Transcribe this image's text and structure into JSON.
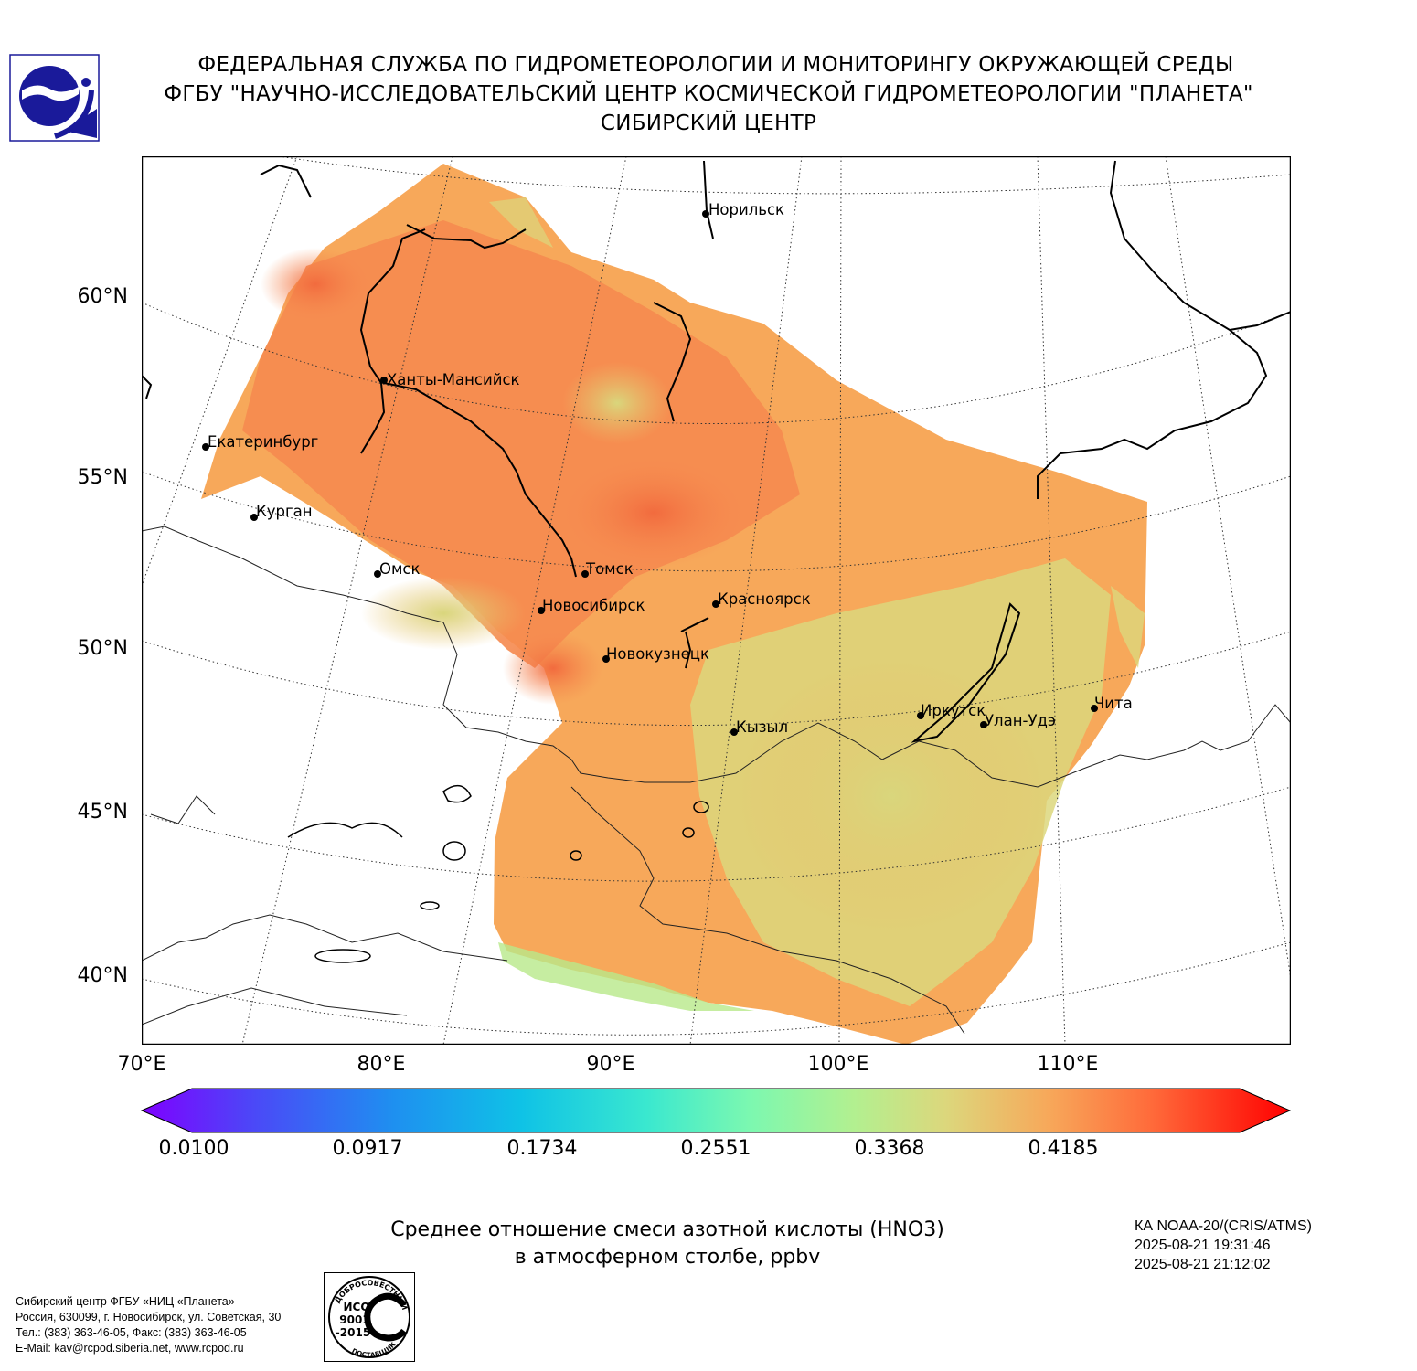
{
  "header": {
    "line1": "ФЕДЕРАЛЬНАЯ СЛУЖБА ПО ГИДРОМЕТЕОРОЛОГИИ И МОНИТОРИНГУ ОКРУЖАЮЩЕЙ СРЕДЫ",
    "line2": "ФГБУ \"НАУЧНО-ИССЛЕДОВАТЕЛЬСКИЙ ЦЕНТР КОСМИЧЕСКОЙ ГИДРОМЕТЕОРОЛОГИИ \"ПЛАНЕТА\"",
    "line3": "СИБИРСКИЙ ЦЕНТР"
  },
  "logo": {
    "name": "planeta-logo-icon",
    "color": "#1a1a9a"
  },
  "map": {
    "lat_labels": [
      "60°N",
      "55°N",
      "50°N",
      "45°N",
      "40°N"
    ],
    "lon_labels": [
      "70°E",
      "80°E",
      "90°E",
      "100°E",
      "110°E"
    ],
    "cities": [
      {
        "name": "Норильск"
      },
      {
        "name": "Ханты-Мансийск"
      },
      {
        "name": "Екатеринбург"
      },
      {
        "name": "Курган"
      },
      {
        "name": "Омск"
      },
      {
        "name": "Томск"
      },
      {
        "name": "Новосибирск"
      },
      {
        "name": "Красноярск"
      },
      {
        "name": "Новокузнецк"
      },
      {
        "name": "Иркутск"
      },
      {
        "name": "Улан-Удэ"
      },
      {
        "name": "Чита"
      },
      {
        "name": "Кызыл"
      }
    ],
    "colors": {
      "high": "#f5894f",
      "mid": "#f7a85a",
      "low": "#dcd77c",
      "lowest": "#b8e88a"
    }
  },
  "colorbar": {
    "ticks": [
      "0.0100",
      "0.0917",
      "0.1734",
      "0.2551",
      "0.3368",
      "0.4185"
    ],
    "colors": [
      "#7f00ff",
      "#4a4af7",
      "#1e90f0",
      "#0fc2e6",
      "#3ae8cf",
      "#7cf8b0",
      "#b2f090",
      "#dcd77c",
      "#f7a85a",
      "#ff6a3a",
      "#ff0000"
    ]
  },
  "caption": {
    "line1": "Среднее отношение смеси азотной кислоты (HNO3)",
    "line2": "в атмосферном столбе, ppbv"
  },
  "satellite": {
    "line1": "КА NOAA-20/(CRIS/ATMS)",
    "line2": "2025-08-21 19:31:46",
    "line3": "2025-08-21 21:12:02"
  },
  "organization": {
    "line1": "Сибирский центр ФГБУ «НИЦ «Планета»",
    "line2": "Россия, 630099, г. Новосибирск, ул. Советская, 30",
    "line3": "Тел.: (383) 363-46-05, Факс: (383) 363-46-05",
    "line4": "E-Mail: kav@rcpod.siberia.net, www.rcpod.ru"
  },
  "iso_stamp": {
    "top": "ДОБРОСОВЕСТНЫЙ",
    "iso": "ИСО",
    "number": "9001",
    "year": "-2015",
    "bottom": "ПОСТАВЩИК"
  }
}
